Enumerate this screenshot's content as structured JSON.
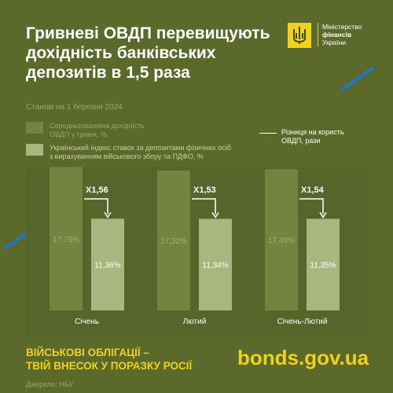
{
  "title": "Гривневі ОВДП перевищують дохідність банківських депозитів в 1,5 раза",
  "date_note": "Станом на 1 березня 2024",
  "ministry": {
    "line1": "Міністерство",
    "line2": "фінансів",
    "line3": "України",
    "emblem": "trident-emblem-icon"
  },
  "legend": {
    "ovdp": "Середньозважена дохідність\nОВДП у гривні, %",
    "deposits": "Український індекс ставок за депозитами фізичних осіб\nз вирахуванням військового збору та ПДФО, %",
    "difference": "Різниця на користь\nОВДП, рази"
  },
  "colors": {
    "background": "#5b6a2a",
    "plot_background": "#56652a",
    "ovdp_bar": "#74833f",
    "deposit_bar": "#aab680",
    "accent_yellow": "#f0d21c",
    "accent_blue": "#1e76c9"
  },
  "chart_data": {
    "type": "bar",
    "categories": [
      "Січень",
      "Лютий",
      "Січень-Лютий"
    ],
    "series": [
      {
        "name": "Середньозважена дохідність ОВДП у гривні, %",
        "values": [
          17.75,
          17.32,
          17.49
        ],
        "labels": [
          "17,75%",
          "17,32%",
          "17,49%"
        ]
      },
      {
        "name": "Український індекс ставок за депозитами фізичних осіб з вирахуванням військового збору та ПДФО, %",
        "values": [
          11.36,
          11.34,
          11.35
        ],
        "labels": [
          "11,36%",
          "11,34%",
          "11,35%"
        ]
      }
    ],
    "ratios": [
      "X1,56",
      "X1,53",
      "X1,54"
    ],
    "ylim": [
      0,
      18
    ]
  },
  "footer": {
    "slogan": "ВІЙСЬКОВІ ОБЛІГАЦІЇ –\nТВІЙ ВНЕСОК У ПОРАЗКУ РОСІЇ",
    "site": "bonds.gov.ua",
    "source": "Джерело: НБУ"
  }
}
